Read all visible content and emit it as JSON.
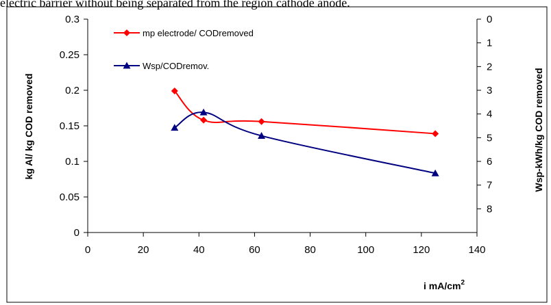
{
  "caption": "electric barrier without being separated from the region cathode anode.",
  "chart_data": {
    "type": "line",
    "title": "",
    "xlabel": "i mA/cm",
    "xlabel_superscript": "2",
    "ylabel_left": "kg Al/ kg COD removed",
    "ylabel_right": "Wsp-kWh/kg COD removed",
    "xlim": [
      0,
      140
    ],
    "ylim_left": [
      0,
      0.3
    ],
    "ylim_right": [
      0,
      9
    ],
    "right_axis_inverted": true,
    "x_ticks": [
      "0",
      "20",
      "40",
      "60",
      "80",
      "100",
      "120",
      "140"
    ],
    "y_left_ticks": [
      "0",
      "0.05",
      "0.1",
      "0.15",
      "0.2",
      "0.25",
      "0.3"
    ],
    "y_right_ticks": [
      "0",
      "1",
      "2",
      "3",
      "4",
      "5",
      "6",
      "7",
      "8"
    ],
    "grid": false,
    "legend_placement": "top-left",
    "series": [
      {
        "name": "mp electrode/ CODremoved",
        "axis": "left",
        "marker": "diamond",
        "color": "#ff0000",
        "x": [
          31.25,
          41.67,
          62.5,
          125
        ],
        "y": [
          0.199,
          0.158,
          0.156,
          0.139
        ]
      },
      {
        "name": "Wsp/CODremov.",
        "axis": "right",
        "marker": "triangle",
        "color": "#000080",
        "x": [
          31.25,
          41.67,
          62.5,
          125
        ],
        "y": [
          4.58,
          3.93,
          4.92,
          6.5
        ]
      }
    ]
  }
}
